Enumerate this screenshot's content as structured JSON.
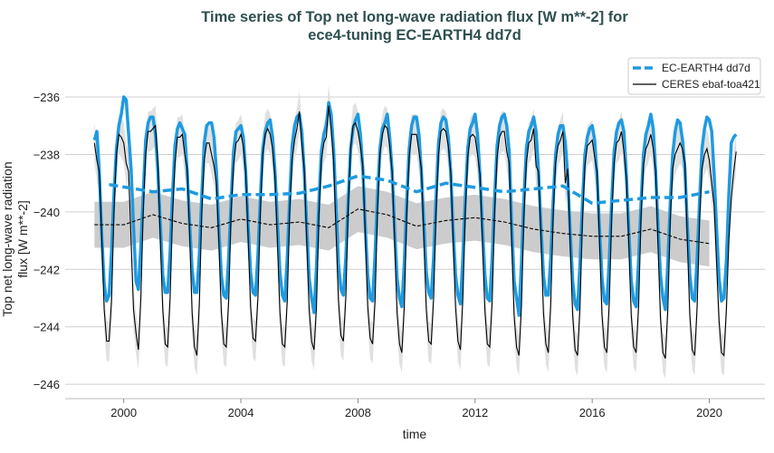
{
  "chart_data": {
    "type": "line",
    "title": "Time series of Top net long-wave radiation flux [W m**-2] for\nece4-tuning EC-EARTH4 dd7d",
    "xlabel": "time",
    "ylabel": "Top net long-wave radiation\nflux [W m**-2]",
    "xlim": [
      1998.0,
      2021.9
    ],
    "ylim": [
      -246.5,
      -235.4
    ],
    "xticks": [
      2000,
      2004,
      2008,
      2012,
      2016,
      2020
    ],
    "yticks": [
      -236,
      -238,
      -240,
      -242,
      -244,
      -246
    ],
    "grid": "horizontal",
    "legend_position": "top-right",
    "colors": {
      "model": "#1f9ae0",
      "obs": "#000000",
      "band": "#cccccc",
      "band_light": "#e0e0e0",
      "title": "#2f4f4f"
    },
    "legend": [
      "EC-EARTH4 dd7d",
      "CERES ebaf-toa421"
    ],
    "monthly_start_year": 1999,
    "series": [
      {
        "name": "EC-EARTH4 dd7d",
        "style": "thick-solid",
        "monthly": [
          [
            -237.5,
            -237.2,
            -238.6,
            -240.8,
            -242.5,
            -243.1,
            -242.9,
            -241.4,
            -239.4,
            -237.8,
            -237.0,
            -236.6
          ],
          [
            -236.0,
            -236.1,
            -237.3,
            -238.5,
            -240.5,
            -242.4,
            -242.7,
            -241.2,
            -239.4,
            -237.5,
            -236.9,
            -236.7
          ],
          [
            -236.7,
            -237.3,
            -238.6,
            -240.4,
            -242.2,
            -242.8,
            -242.8,
            -241.4,
            -239.4,
            -237.7,
            -237.1,
            -236.9
          ],
          [
            -237.1,
            -237.3,
            -238.6,
            -240.4,
            -242.0,
            -242.8,
            -242.8,
            -241.5,
            -239.4,
            -237.6,
            -237.0,
            -236.9
          ],
          [
            -236.9,
            -237.4,
            -238.6,
            -240.6,
            -242.2,
            -242.9,
            -243.0,
            -241.6,
            -239.6,
            -237.9,
            -237.2,
            -237.1
          ],
          [
            -237.0,
            -237.4,
            -238.6,
            -240.5,
            -242.1,
            -242.8,
            -242.9,
            -241.5,
            -239.5,
            -237.8,
            -237.2,
            -236.9
          ],
          [
            -236.8,
            -237.4,
            -238.6,
            -240.4,
            -242.1,
            -242.9,
            -243.1,
            -241.6,
            -239.5,
            -237.7,
            -237.0,
            -236.7
          ],
          [
            -236.6,
            -237.2,
            -238.6,
            -240.5,
            -242.3,
            -243.0,
            -243.5,
            -241.9,
            -239.6,
            -237.9,
            -237.3,
            -237.0
          ],
          [
            -236.2,
            -236.6,
            -237.8,
            -239.8,
            -241.8,
            -242.7,
            -242.9,
            -241.6,
            -239.6,
            -237.8,
            -237.1,
            -236.8
          ],
          [
            -236.6,
            -237.3,
            -238.5,
            -240.5,
            -242.2,
            -243.0,
            -243.1,
            -241.5,
            -239.4,
            -237.8,
            -237.1,
            -236.9
          ],
          [
            -236.6,
            -237.4,
            -238.6,
            -240.6,
            -242.3,
            -243.0,
            -243.3,
            -241.8,
            -239.6,
            -237.8,
            -237.0,
            -236.7
          ],
          [
            -236.7,
            -237.3,
            -238.6,
            -240.4,
            -242.1,
            -242.8,
            -243.0,
            -241.6,
            -239.5,
            -237.6,
            -236.9,
            -236.7
          ],
          [
            -236.8,
            -237.4,
            -238.6,
            -240.6,
            -242.2,
            -242.9,
            -243.2,
            -241.6,
            -239.5,
            -237.8,
            -237.1,
            -236.9
          ],
          [
            -236.6,
            -237.3,
            -238.7,
            -240.5,
            -242.2,
            -243.0,
            -243.1,
            -241.6,
            -239.5,
            -237.7,
            -237.0,
            -236.7
          ],
          [
            -236.6,
            -237.0,
            -237.9,
            -240.4,
            -242.4,
            -243.0,
            -243.6,
            -241.8,
            -239.6,
            -237.8,
            -237.2,
            -237.0
          ],
          [
            -236.7,
            -237.2,
            -238.6,
            -240.5,
            -242.2,
            -242.9,
            -242.9,
            -241.6,
            -239.6,
            -238.0,
            -237.3,
            -237.0
          ],
          [
            -237.0,
            -237.6,
            -238.8,
            -240.7,
            -242.4,
            -243.2,
            -243.4,
            -241.8,
            -239.7,
            -238.0,
            -237.4,
            -237.1
          ],
          [
            -237.0,
            -237.5,
            -238.8,
            -240.6,
            -242.3,
            -243.1,
            -243.2,
            -241.7,
            -239.6,
            -237.9,
            -237.2,
            -236.9
          ],
          [
            -236.8,
            -237.2,
            -238.7,
            -240.6,
            -242.4,
            -243.1,
            -243.3,
            -241.7,
            -239.7,
            -238.0,
            -237.3,
            -237.0
          ],
          [
            -236.6,
            -237.1,
            -238.6,
            -240.5,
            -242.2,
            -243.0,
            -243.4,
            -241.8,
            -239.7,
            -238.0,
            -237.2,
            -236.8
          ],
          [
            -236.9,
            -237.5,
            -238.5,
            -240.5,
            -242.2,
            -243.0,
            -243.1,
            -241.6,
            -239.6,
            -237.8,
            -237.1,
            -236.7
          ],
          [
            -236.8,
            -237.2,
            -238.7,
            -240.6,
            -242.3,
            -243.1,
            -243.0,
            -241.7,
            -239.4,
            -237.6,
            -237.4,
            -237.3
          ]
        ],
        "running_mean": {
          "x": [
            1999.5,
            2001,
            2002,
            2003,
            2004,
            2005,
            2006,
            2007,
            2008,
            2009,
            2010,
            2011,
            2012,
            2013,
            2014,
            2015,
            2016,
            2017,
            2018,
            2019,
            2020
          ],
          "y": [
            -239.05,
            -239.3,
            -239.2,
            -239.55,
            -239.4,
            -239.4,
            -239.35,
            -239.1,
            -238.75,
            -238.9,
            -239.3,
            -239.0,
            -239.15,
            -239.3,
            -239.2,
            -239.1,
            -239.7,
            -239.6,
            -239.5,
            -239.5,
            -239.3
          ]
        }
      },
      {
        "name": "CERES ebaf-toa421",
        "style": "thin-solid",
        "monthly": [
          [
            -237.6,
            -238.2,
            -238.6,
            -240.9,
            -243.4,
            -244.5,
            -244.5,
            -243.1,
            -240.0,
            -238.0,
            -237.3,
            -237.4
          ],
          [
            -237.6,
            -238.3,
            -238.6,
            -241.0,
            -243.4,
            -244.2,
            -244.8,
            -243.0,
            -240.0,
            -238.0,
            -237.2,
            -237.2
          ],
          [
            -237.1,
            -237.0,
            -238.3,
            -241.0,
            -243.4,
            -244.6,
            -244.7,
            -243.0,
            -240.1,
            -238.3,
            -237.4,
            -237.4
          ],
          [
            -237.3,
            -238.0,
            -238.5,
            -240.8,
            -243.5,
            -244.7,
            -245.0,
            -243.2,
            -240.0,
            -238.2,
            -237.6,
            -237.6
          ],
          [
            -238.0,
            -238.4,
            -239.0,
            -241.1,
            -243.5,
            -244.6,
            -244.7,
            -243.1,
            -240.0,
            -238.4,
            -237.6,
            -237.5
          ],
          [
            -237.3,
            -237.7,
            -238.6,
            -240.9,
            -243.3,
            -244.4,
            -244.5,
            -243.0,
            -240.0,
            -238.0,
            -237.3,
            -237.1
          ],
          [
            -237.3,
            -237.8,
            -238.8,
            -241.1,
            -243.5,
            -244.6,
            -244.7,
            -243.1,
            -240.0,
            -238.2,
            -237.5,
            -237.1
          ],
          [
            -236.5,
            -237.6,
            -238.5,
            -241.0,
            -243.4,
            -244.5,
            -244.8,
            -243.3,
            -240.1,
            -238.2,
            -237.6,
            -237.4
          ],
          [
            -236.3,
            -237.1,
            -238.2,
            -240.7,
            -243.1,
            -244.3,
            -244.5,
            -243.0,
            -239.9,
            -237.8,
            -237.0,
            -236.9
          ],
          [
            -237.2,
            -237.7,
            -238.4,
            -240.8,
            -243.3,
            -244.4,
            -244.6,
            -243.1,
            -240.0,
            -238.0,
            -237.3,
            -237.0
          ],
          [
            -237.1,
            -237.7,
            -238.6,
            -241.0,
            -243.5,
            -244.6,
            -244.9,
            -243.3,
            -240.1,
            -238.1,
            -237.3,
            -237.3
          ],
          [
            -237.3,
            -237.9,
            -238.5,
            -240.9,
            -243.4,
            -244.5,
            -244.6,
            -243.0,
            -240.0,
            -238.0,
            -237.2,
            -237.1
          ],
          [
            -237.2,
            -237.7,
            -238.6,
            -240.9,
            -243.3,
            -244.5,
            -244.8,
            -243.0,
            -240.0,
            -238.1,
            -237.4,
            -237.3
          ],
          [
            -237.4,
            -238.0,
            -238.7,
            -241.0,
            -243.4,
            -244.6,
            -244.7,
            -243.1,
            -240.0,
            -238.1,
            -237.4,
            -237.2
          ],
          [
            -237.2,
            -237.9,
            -238.3,
            -241.0,
            -243.6,
            -244.7,
            -245.0,
            -243.3,
            -240.2,
            -238.3,
            -237.6,
            -237.5
          ],
          [
            -237.1,
            -238.4,
            -238.6,
            -240.9,
            -243.5,
            -244.6,
            -244.9,
            -243.2,
            -240.1,
            -238.3,
            -237.7,
            -237.5
          ],
          [
            -237.2,
            -239.0,
            -238.5,
            -241.2,
            -243.6,
            -244.8,
            -245.0,
            -243.3,
            -240.3,
            -238.4,
            -237.7,
            -237.6
          ],
          [
            -237.5,
            -238.1,
            -238.6,
            -241.1,
            -243.6,
            -244.7,
            -244.9,
            -243.2,
            -240.2,
            -238.3,
            -237.6,
            -237.5
          ],
          [
            -237.2,
            -237.9,
            -238.8,
            -241.1,
            -243.6,
            -244.7,
            -244.9,
            -243.3,
            -240.2,
            -238.4,
            -237.8,
            -237.6
          ],
          [
            -237.3,
            -237.8,
            -238.6,
            -241.2,
            -243.7,
            -244.9,
            -245.1,
            -243.4,
            -240.3,
            -238.5,
            -238.0,
            -237.8
          ],
          [
            -237.6,
            -237.8,
            -238.3,
            -241.0,
            -243.6,
            -244.8,
            -245.0,
            -243.3,
            -240.3,
            -238.5,
            -238.0,
            -237.8
          ],
          [
            -238.2,
            -239.0,
            -239.8,
            -241.8,
            -243.8,
            -244.9,
            -245.0,
            -243.4,
            -241.0,
            -239.5,
            -238.6,
            -237.9
          ]
        ],
        "spread": 0.7,
        "running_mean": {
          "x": [
            1999,
            2000,
            2001,
            2002,
            2003,
            2004,
            2005,
            2006,
            2007,
            2008,
            2009,
            2010,
            2011,
            2012,
            2013,
            2014,
            2015,
            2016,
            2017,
            2018,
            2019,
            2020
          ],
          "y": [
            -240.45,
            -240.45,
            -240.1,
            -240.4,
            -240.55,
            -240.25,
            -240.45,
            -240.35,
            -240.55,
            -239.9,
            -240.1,
            -240.5,
            -240.3,
            -240.2,
            -240.35,
            -240.6,
            -240.75,
            -240.85,
            -240.85,
            -240.6,
            -240.95,
            -241.1
          ],
          "spread": 0.8
        }
      }
    ]
  }
}
